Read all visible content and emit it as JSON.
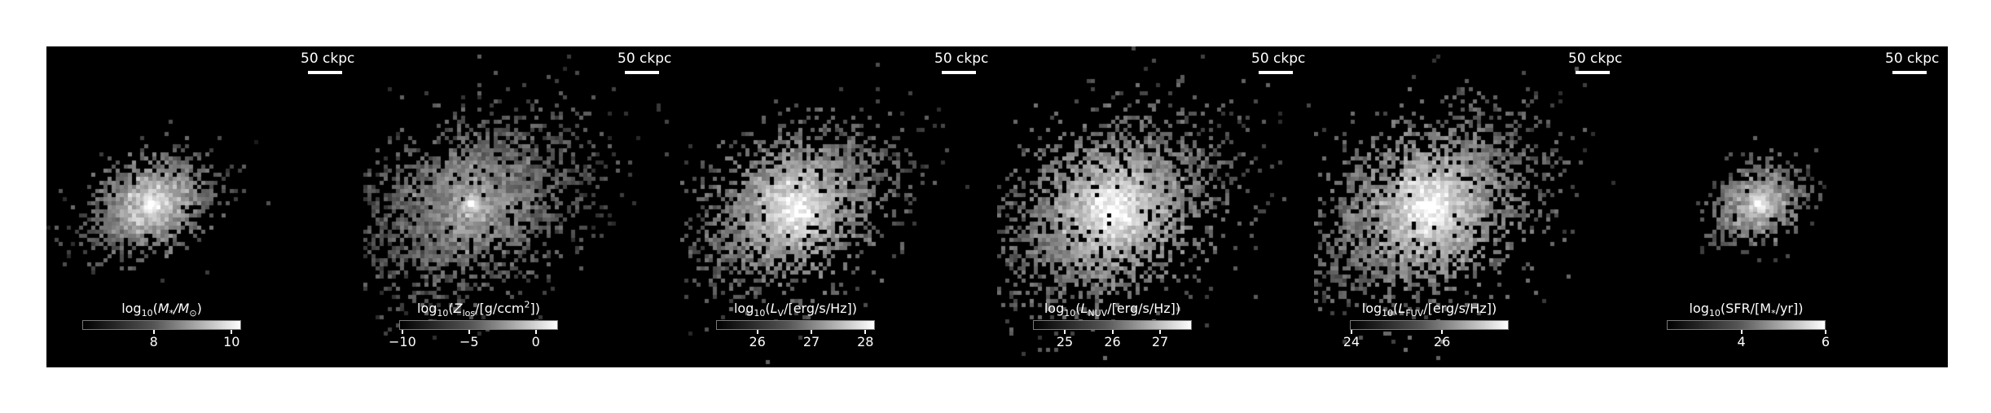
{
  "panels": [
    {
      "id": "stellar-mass",
      "scalebar": "50 ckpc",
      "colorbar": {
        "prefix": "log",
        "sub": "10",
        "open": "(",
        "body": "M",
        "body_sub": "*",
        "tail": "/M",
        "tail_sub": "⊙",
        "sup": "",
        "close": ")",
        "ticks": [
          "8",
          "10"
        ]
      }
    },
    {
      "id": "metallicity",
      "scalebar": "50 ckpc",
      "colorbar": {
        "prefix": "log",
        "sub": "10",
        "open": "(",
        "body": "Z",
        "body_sub": "los",
        "tail": "/[g/ccm",
        "tail_sub": "",
        "sup": "2",
        "close": "])",
        "ticks": [
          "−10",
          "−5",
          "0"
        ]
      }
    },
    {
      "id": "v-band-luminosity",
      "scalebar": "50 ckpc",
      "colorbar": {
        "prefix": "log",
        "sub": "10",
        "open": "(",
        "body": "L",
        "body_sub": "V",
        "tail": "/[erg/s/Hz])",
        "tail_sub": "",
        "sup": "",
        "close": "",
        "ticks": [
          "26",
          "27",
          "28"
        ]
      }
    },
    {
      "id": "nuv-luminosity",
      "scalebar": "50 ckpc",
      "colorbar": {
        "prefix": "log",
        "sub": "10",
        "open": "(",
        "body": "L",
        "body_sub": "NUV",
        "tail": "/[erg/s/Hz])",
        "tail_sub": "",
        "sup": "",
        "close": "",
        "ticks": [
          "25",
          "26",
          "27"
        ]
      }
    },
    {
      "id": "fuv-luminosity",
      "scalebar": "50 ckpc",
      "colorbar": {
        "prefix": "log",
        "sub": "10",
        "open": "(",
        "body": "L",
        "body_sub": "FUV",
        "tail": "/[erg/s/Hz])",
        "tail_sub": "",
        "sup": "",
        "close": "",
        "ticks": [
          "24",
          "26"
        ]
      }
    },
    {
      "id": "star-formation-rate",
      "scalebar": "50 ckpc",
      "colorbar": {
        "prefix": "log",
        "sub": "10",
        "open": "(",
        "body": "SFR/[M",
        "body_sub": "*",
        "tail": "/yr])",
        "tail_sub": "",
        "sup": "",
        "close": "",
        "ticks": [
          "4",
          "6"
        ]
      }
    }
  ],
  "colors": {
    "background": "#000000",
    "text": "#ffffff",
    "page": "#ffffff"
  }
}
